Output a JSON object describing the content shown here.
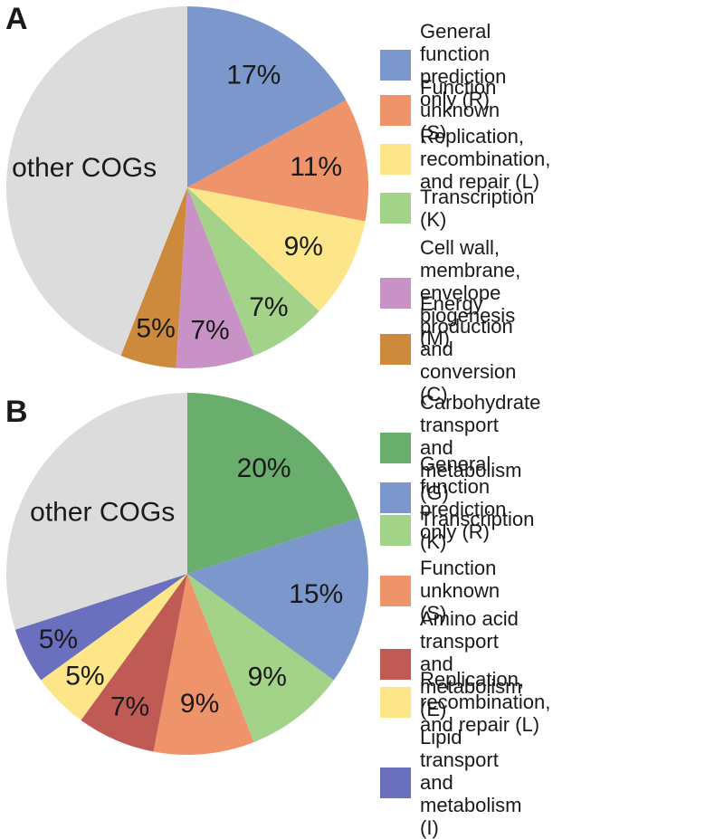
{
  "chart_data": [
    {
      "panel": "A",
      "type": "pie",
      "slices": [
        {
          "label": "17%",
          "value": 17,
          "category": "General function\nprediction only (R)",
          "color": "#7b97cc"
        },
        {
          "label": "11%",
          "value": 11,
          "category": "Function unknown (S)",
          "color": "#ef936b"
        },
        {
          "label": "9%",
          "value": 9,
          "category": "Replication, recombination,\nand repair (L)",
          "color": "#fde68a"
        },
        {
          "label": "7%",
          "value": 7,
          "category": "Transcription (K)",
          "color": "#a3d389"
        },
        {
          "label": "7%",
          "value": 7,
          "category": "Cell wall, membrane,\nenvelope biogenesis (M)",
          "color": "#c992c6"
        },
        {
          "label": "5%",
          "value": 5,
          "category": "Energy production\nand conversion (C)",
          "color": "#cd8a3d"
        },
        {
          "label": "other COGs",
          "value": 44,
          "category": null,
          "color": "#dcdcdc"
        }
      ]
    },
    {
      "panel": "B",
      "type": "pie",
      "slices": [
        {
          "label": "20%",
          "value": 20,
          "category": "Carbohydrate transport\nand metabolism (G)",
          "color": "#6aae6d"
        },
        {
          "label": "15%",
          "value": 15,
          "category": "General function\nprediction only (R)",
          "color": "#7b97cc"
        },
        {
          "label": "9%",
          "value": 9,
          "category": "Transcription (K)",
          "color": "#a3d389"
        },
        {
          "label": "9%",
          "value": 9,
          "category": "Function unknown (S)",
          "color": "#ef936b"
        },
        {
          "label": "7%",
          "value": 7,
          "category": "Amino acid transport\nand metabolism (E)",
          "color": "#bf5a55"
        },
        {
          "label": "5%",
          "value": 5,
          "category": "Replication, recombination,\nand repair (L)",
          "color": "#fde68a"
        },
        {
          "label": "5%",
          "value": 5,
          "category": "Lipid transport\nand metabolism (I)",
          "color": "#6a70bd"
        },
        {
          "label": "other COGs",
          "value": 30,
          "category": null,
          "color": "#dcdcdc"
        }
      ]
    }
  ]
}
